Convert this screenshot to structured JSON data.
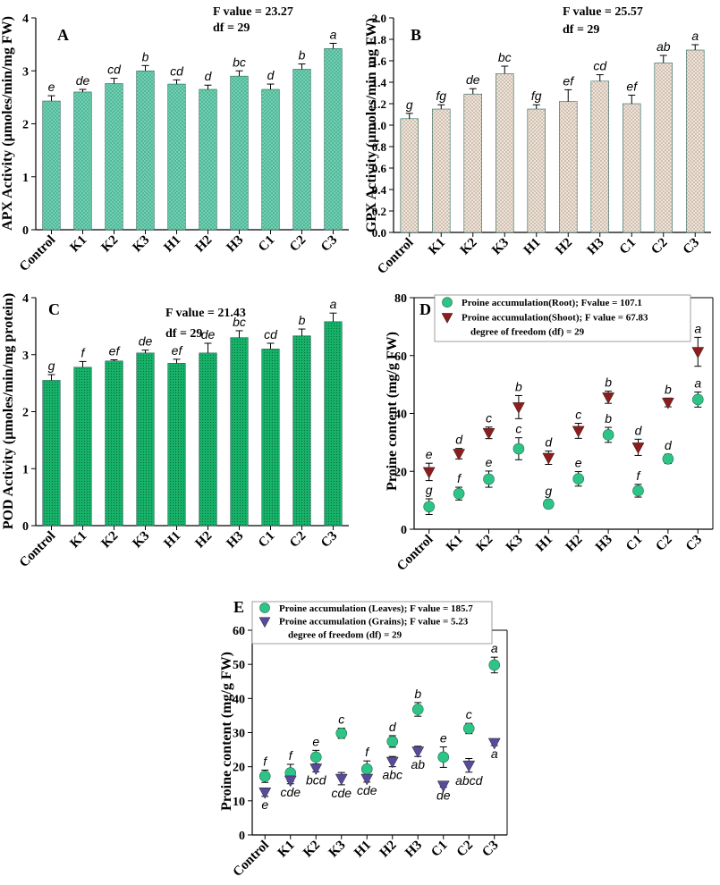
{
  "colors": {
    "apx_fill": "#6fd0b2",
    "gpx_fill": "#e6d6c7",
    "pod_fill": "#17b26a",
    "bar_stroke": "#2c6a5c",
    "green_marker": "#2ec487",
    "red_marker": "#8f1c1c",
    "purple_marker": "#5a4a9c"
  },
  "chart_data": [
    {
      "id": "A",
      "panel_label": "A",
      "type": "bar",
      "categories": [
        "Control",
        "K1",
        "K2",
        "K3",
        "H1",
        "H2",
        "H3",
        "C1",
        "C2",
        "C3"
      ],
      "values": [
        2.43,
        2.6,
        2.76,
        3.0,
        2.75,
        2.65,
        2.9,
        2.65,
        3.03,
        3.42
      ],
      "errors": [
        0.1,
        0.05,
        0.1,
        0.1,
        0.08,
        0.08,
        0.1,
        0.1,
        0.1,
        0.1
      ],
      "letters": [
        "e",
        "de",
        "cd",
        "b",
        "cd",
        "d",
        "bc",
        "d",
        "b",
        "a"
      ],
      "ylabel": "APX Activity (µmoles/min/mg FW)",
      "ylim": [
        0,
        4
      ],
      "yticks": [
        "0",
        "1",
        "2",
        "3",
        "4"
      ],
      "stats": [
        "F value = 23.27",
        "df = 29"
      ]
    },
    {
      "id": "B",
      "panel_label": "B",
      "type": "bar",
      "categories": [
        "Control",
        "K1",
        "K2",
        "K3",
        "H1",
        "H2",
        "H3",
        "C1",
        "C2",
        "C3"
      ],
      "values": [
        1.06,
        1.15,
        1.29,
        1.48,
        1.15,
        1.22,
        1.41,
        1.2,
        1.58,
        1.7
      ],
      "errors": [
        0.05,
        0.04,
        0.05,
        0.07,
        0.04,
        0.11,
        0.06,
        0.08,
        0.07,
        0.05
      ],
      "letters": [
        "g",
        "fg",
        "de",
        "bc",
        "fg",
        "ef",
        "cd",
        "ef",
        "ab",
        "a"
      ],
      "ylabel": "GPX Activity (µmoles/min mg FW)",
      "ylim": [
        0,
        2.0
      ],
      "yticks": [
        "0.0",
        "0.2",
        "0.4",
        "0.6",
        "0.8",
        "1.0",
        "1.2",
        "1.4",
        "1.6",
        "1.8",
        "2.0"
      ],
      "stats": [
        "F value = 25.57",
        "df = 29"
      ]
    },
    {
      "id": "C",
      "panel_label": "C",
      "type": "bar",
      "categories": [
        "Control",
        "K1",
        "K2",
        "K3",
        "H1",
        "H2",
        "H3",
        "C1",
        "C2",
        "C3"
      ],
      "values": [
        2.55,
        2.78,
        2.89,
        3.03,
        2.85,
        3.03,
        3.3,
        3.1,
        3.33,
        3.58
      ],
      "errors": [
        0.1,
        0.1,
        0.02,
        0.05,
        0.07,
        0.17,
        0.12,
        0.1,
        0.12,
        0.15
      ],
      "letters": [
        "g",
        "f",
        "ef",
        "de",
        "ef",
        "de",
        "bc",
        "cd",
        "b",
        "a"
      ],
      "ylabel": "POD Activity (µmoles/min/mg protein)",
      "ylim": [
        0,
        4
      ],
      "yticks": [
        "0",
        "1",
        "2",
        "3",
        "4"
      ],
      "stats": [
        "F value = 21.43",
        "df = 29"
      ]
    },
    {
      "id": "D",
      "panel_label": "D",
      "type": "scatter",
      "categories": [
        "Control",
        "K1",
        "K2",
        "K3",
        "H1",
        "H2",
        "H3",
        "C1",
        "C2",
        "C3"
      ],
      "ylabel": "Proine content (mg/g FW)",
      "ylim": [
        0,
        80
      ],
      "yticks": [
        "0",
        "20",
        "40",
        "60",
        "80"
      ],
      "legend": [
        "Proine accumulation(Root); Fvalue = 107.1",
        "Proine accumulation(Shoot); F value = 67.83",
        "degree of freedom (df) = 29"
      ],
      "series": [
        {
          "name": "Root",
          "marker": "circle",
          "color": "#2ec487",
          "values": [
            7.8,
            12.3,
            17.3,
            27.8,
            8.7,
            17.4,
            32.6,
            13.3,
            24.3,
            44.8
          ],
          "errors": [
            2.7,
            2.2,
            2.8,
            3.8,
            1.5,
            2.5,
            2.6,
            2.2,
            1.6,
            2.6
          ],
          "letters": [
            "g",
            "f",
            "e",
            "c",
            "g",
            "e",
            "b",
            "f",
            "d",
            "a"
          ]
        },
        {
          "name": "Shoot",
          "marker": "triangle-down",
          "color": "#8f1c1c",
          "values": [
            19.8,
            26.1,
            33.3,
            42.2,
            24.7,
            34.0,
            45.6,
            28.3,
            43.8,
            61.3
          ],
          "errors": [
            3.0,
            1.8,
            2.0,
            4.0,
            2.3,
            2.6,
            2.1,
            2.8,
            1.5,
            5.0
          ],
          "letters": [
            "e",
            "d",
            "c",
            "b",
            "d",
            "c",
            "b",
            "d",
            "b",
            "a"
          ]
        }
      ]
    },
    {
      "id": "E",
      "panel_label": "E",
      "type": "scatter",
      "categories": [
        "Control",
        "K1",
        "K2",
        "K3",
        "H1",
        "H2",
        "H3",
        "C1",
        "C2",
        "C3"
      ],
      "ylabel": "Proine content (mg/g FW)",
      "ylim": [
        0,
        60
      ],
      "yticks": [
        "0",
        "10",
        "20",
        "30",
        "40",
        "50",
        "60"
      ],
      "legend": [
        "Proine accumulation (Leaves); F value = 185.7",
        "Proine accumulation (Grains); F value = 5.23",
        "degree of freedom (df) = 29"
      ],
      "series": [
        {
          "name": "Leaves",
          "marker": "circle",
          "color": "#2ec487",
          "values": [
            17.2,
            18.2,
            22.8,
            29.8,
            19.3,
            27.4,
            36.8,
            22.8,
            31.2,
            49.8
          ],
          "errors": [
            1.8,
            2.5,
            2.0,
            1.5,
            2.4,
            1.7,
            2.0,
            3.0,
            1.5,
            2.3
          ],
          "letters": [
            "f",
            "f",
            "e",
            "c",
            "f",
            "d",
            "b",
            "e",
            "c",
            "a"
          ],
          "letter_pos": "above"
        },
        {
          "name": "Grains",
          "marker": "triangle-down",
          "color": "#5a4a9c",
          "values": [
            12.5,
            16.0,
            19.5,
            16.5,
            16.5,
            21.5,
            24.5,
            14.5,
            20.4,
            27.0
          ],
          "errors": [
            1.2,
            1.0,
            1.0,
            1.8,
            1.0,
            1.5,
            1.5,
            0.5,
            2.0,
            0.8
          ],
          "letters": [
            "e",
            "cde",
            "bcd",
            "cde",
            "cde",
            "abc",
            "ab",
            "de",
            "abcd",
            "a"
          ],
          "letter_pos": "below"
        }
      ]
    }
  ]
}
